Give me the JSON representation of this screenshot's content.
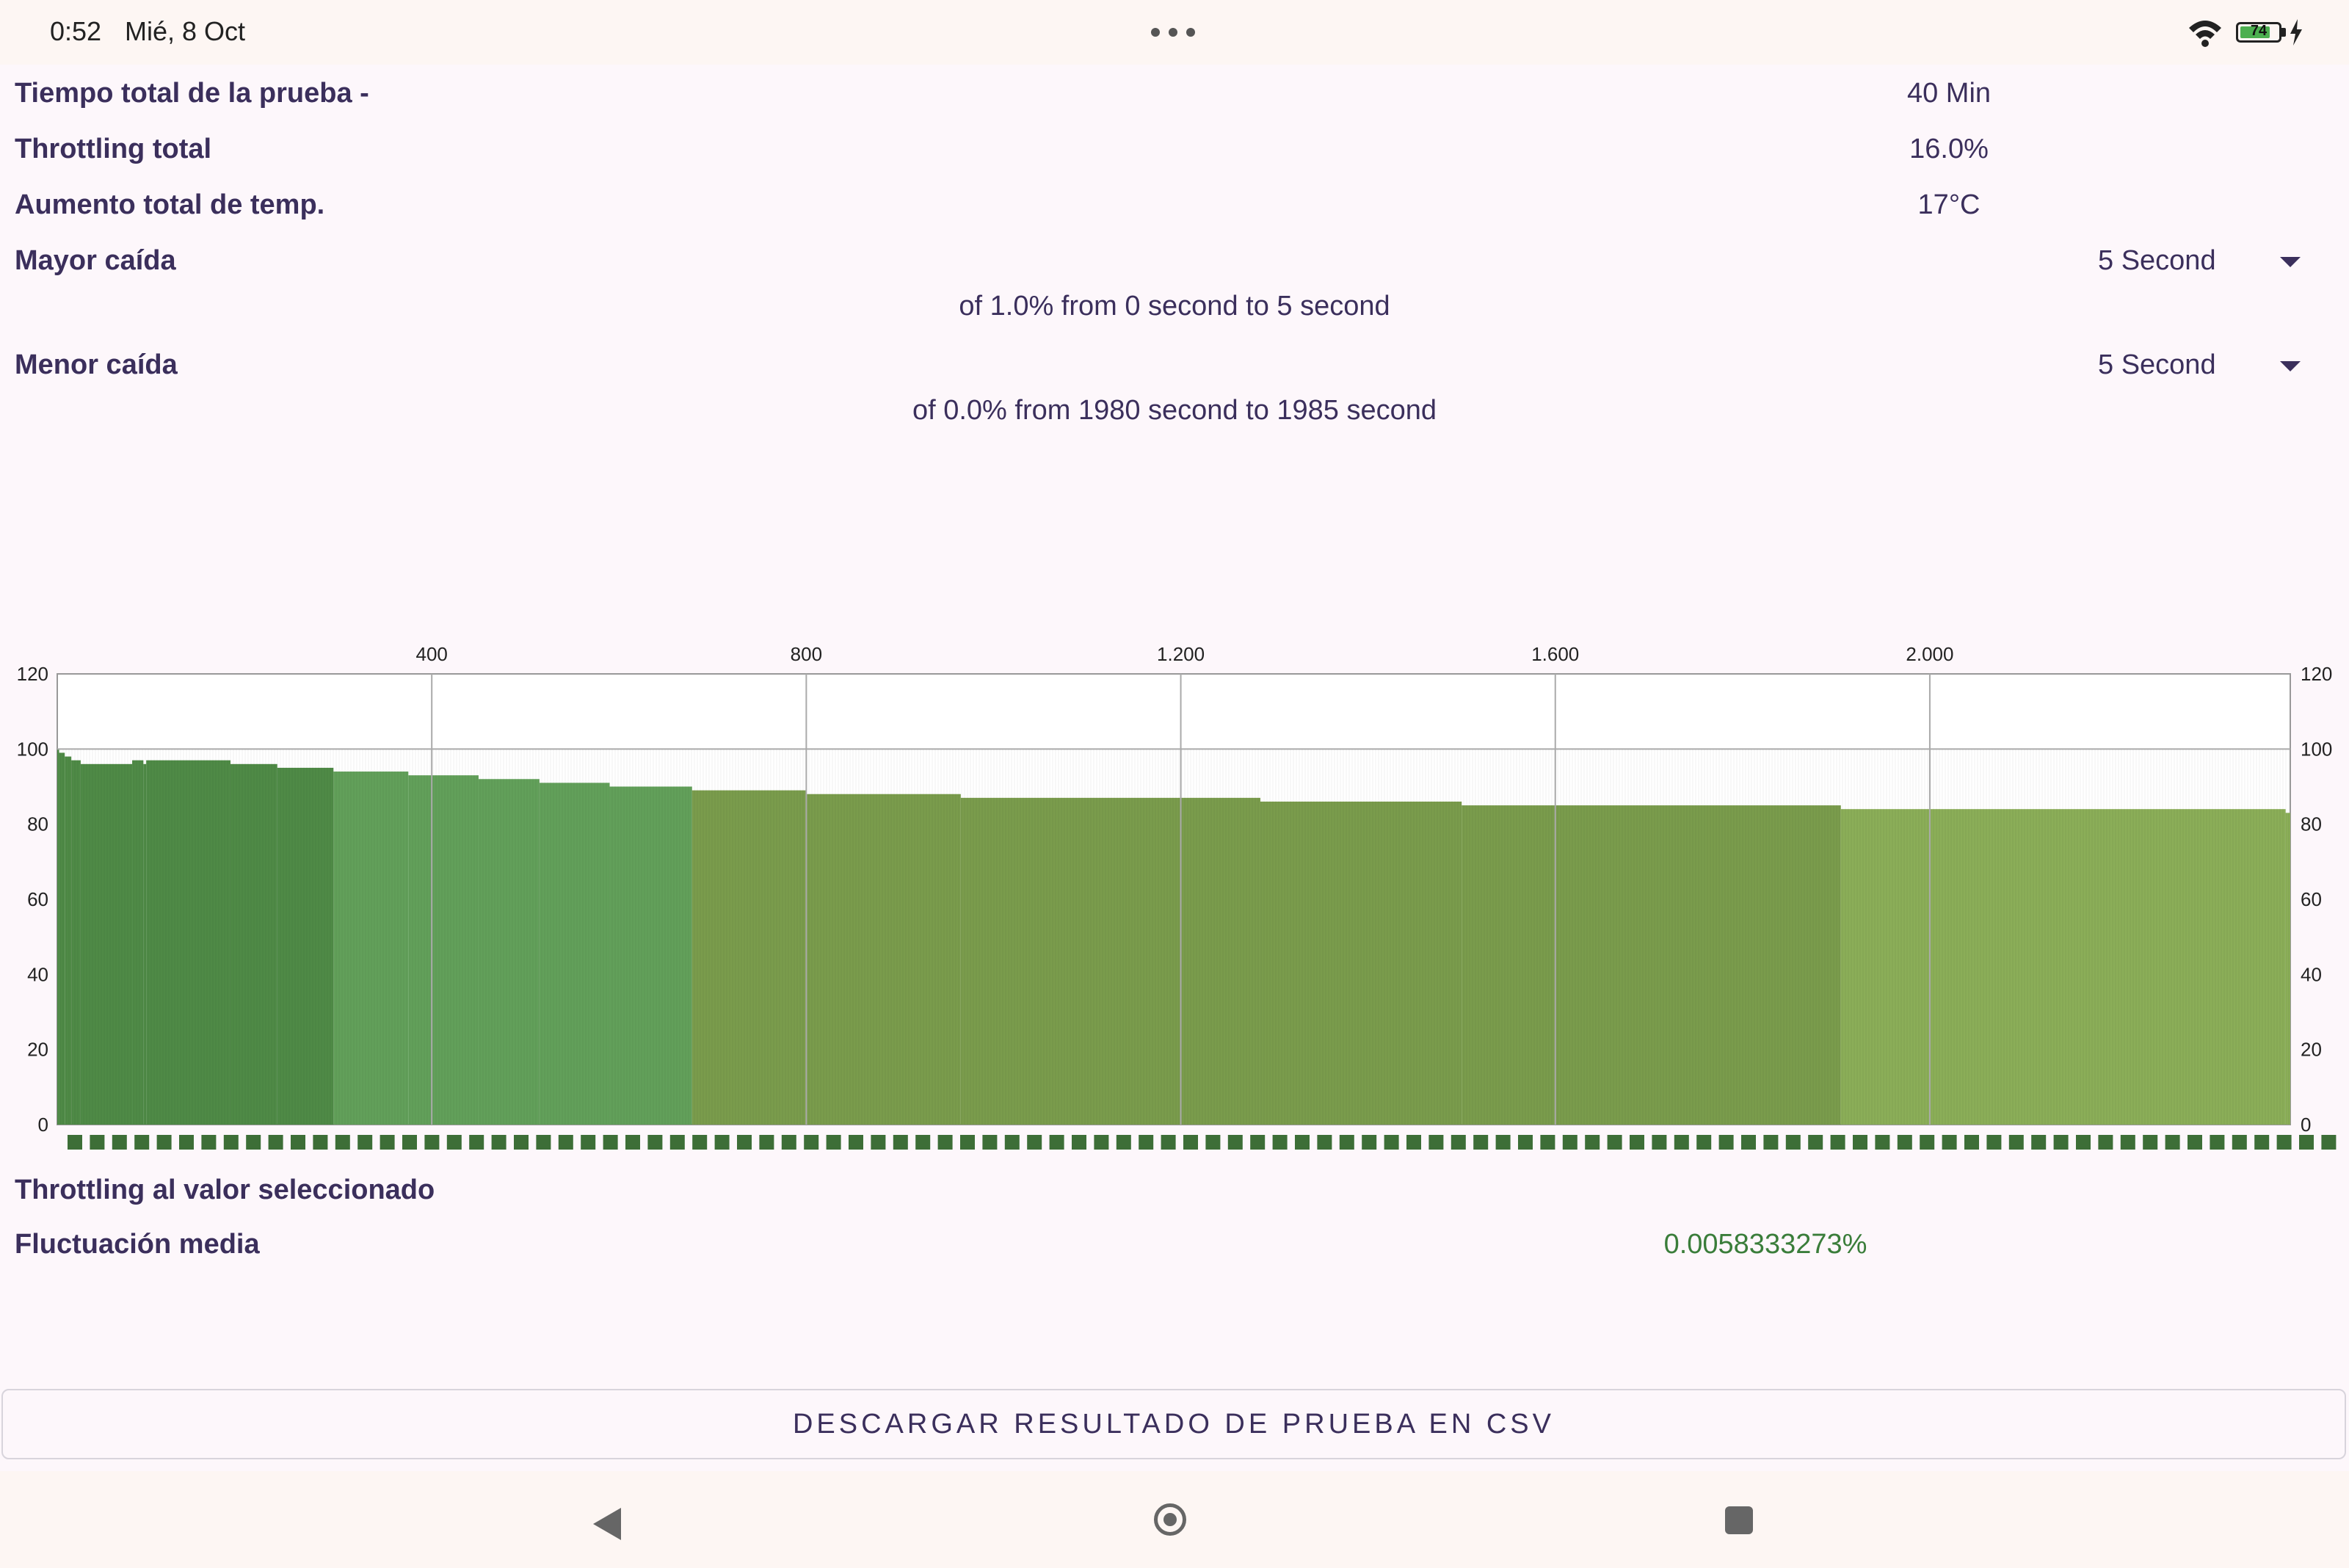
{
  "status_bar": {
    "time": "0:52",
    "date": "Mié, 8 Oct",
    "battery_level": "74",
    "icons": [
      "more-dots-icon",
      "wifi-icon",
      "battery-icon",
      "charging-bolt-icon"
    ]
  },
  "summary": {
    "total_time_label": "Tiempo total de la prueba -",
    "total_time_value": "40 Min",
    "throttling_label": "Throttling total",
    "throttling_value": "16.0%",
    "temp_label": "Aumento total de temp.",
    "temp_value": "17°C"
  },
  "max_drop": {
    "label": "Mayor caída",
    "interval_selected": "5 Second",
    "description": "of 1.0% from 0 second to  5 second"
  },
  "min_drop": {
    "label": "Menor caída",
    "interval_selected": "5 Second",
    "description": "of 0.0% from 1980 second to  1985 second"
  },
  "chart_data": {
    "type": "bar",
    "x_ticks": [
      "400",
      "800",
      "1.200",
      "1.600",
      "2.000"
    ],
    "x_tick_values": [
      400,
      800,
      1200,
      1600,
      2000
    ],
    "xlim": [
      0,
      2385
    ],
    "ylim": [
      0,
      120
    ],
    "y_ticks": [
      0,
      20,
      40,
      60,
      80,
      100,
      120
    ],
    "x_axis_position": "top",
    "grid": true,
    "segments": [
      {
        "x_start": 0,
        "x_end": 2,
        "value": 100
      },
      {
        "x_start": 2,
        "x_end": 8,
        "value": 99
      },
      {
        "x_start": 8,
        "x_end": 15,
        "value": 98
      },
      {
        "x_start": 15,
        "x_end": 25,
        "value": 97
      },
      {
        "x_start": 25,
        "x_end": 80,
        "value": 96
      },
      {
        "x_start": 80,
        "x_end": 92,
        "value": 97
      },
      {
        "x_start": 92,
        "x_end": 95,
        "value": 96
      },
      {
        "x_start": 95,
        "x_end": 185,
        "value": 97
      },
      {
        "x_start": 185,
        "x_end": 235,
        "value": 96
      },
      {
        "x_start": 235,
        "x_end": 295,
        "value": 95
      },
      {
        "x_start": 295,
        "x_end": 375,
        "value": 94
      },
      {
        "x_start": 375,
        "x_end": 450,
        "value": 93
      },
      {
        "x_start": 450,
        "x_end": 515,
        "value": 92
      },
      {
        "x_start": 515,
        "x_end": 590,
        "value": 91
      },
      {
        "x_start": 590,
        "x_end": 678,
        "value": 90
      },
      {
        "x_start": 678,
        "x_end": 800,
        "value": 89
      },
      {
        "x_start": 800,
        "x_end": 965,
        "value": 88
      },
      {
        "x_start": 965,
        "x_end": 1285,
        "value": 87
      },
      {
        "x_start": 1285,
        "x_end": 1500,
        "value": 86
      },
      {
        "x_start": 1500,
        "x_end": 1905,
        "value": 85
      },
      {
        "x_start": 1905,
        "x_end": 2380,
        "value": 84
      },
      {
        "x_start": 2380,
        "x_end": 2385,
        "value": 83
      }
    ],
    "color_bands": [
      {
        "x_start": 0,
        "x_end": 295,
        "color": "#4f8a46"
      },
      {
        "x_start": 295,
        "x_end": 678,
        "color": "#62a05a"
      },
      {
        "x_start": 678,
        "x_end": 1905,
        "color": "#7a9c4c"
      },
      {
        "x_start": 1905,
        "x_end": 2385,
        "color": "#8bae58"
      }
    ]
  },
  "selected": {
    "throttling_label": "Throttling al valor seleccionado",
    "fluctuation_label": "Fluctuación media",
    "fluctuation_value": "0.0058333273%"
  },
  "download_button": "DESCARGAR RESULTADO DE PRUEBA EN CSV",
  "nav_bar": {
    "icons": [
      "back-icon",
      "home-icon",
      "recents-icon"
    ]
  }
}
